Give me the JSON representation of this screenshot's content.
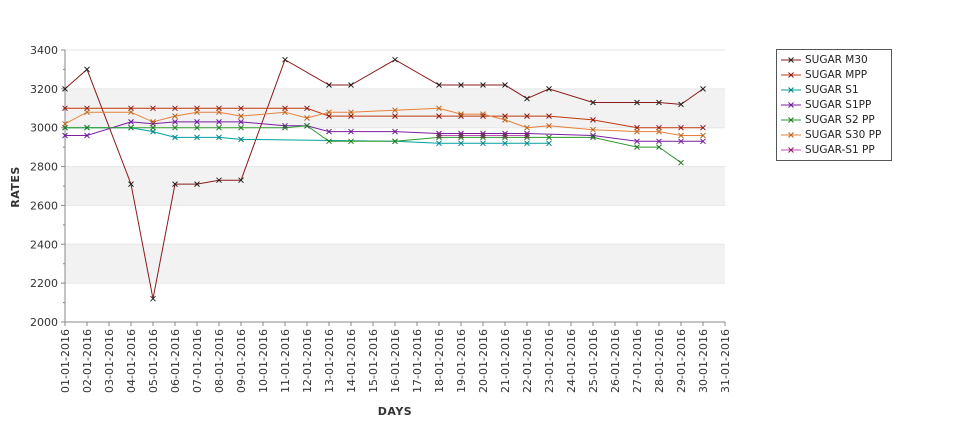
{
  "chart_data": {
    "type": "line",
    "title": "",
    "xlabel": "DAYS",
    "ylabel": "RATES",
    "ylim": [
      2000,
      3400
    ],
    "yticks": [
      2000,
      2200,
      2400,
      2600,
      2800,
      3000,
      3200,
      3400
    ],
    "grid": "alternating horizontal bands",
    "legend": "right",
    "x": [
      "01-01-2016",
      "02-01-2016",
      "03-01-2016",
      "04-01-2016",
      "05-01-2016",
      "06-01-2016",
      "07-01-2016",
      "08-01-2016",
      "09-01-2016",
      "10-01-2016",
      "11-01-2016",
      "12-01-2016",
      "13-01-2016",
      "14-01-2016",
      "15-01-2016",
      "16-01-2016",
      "17-01-2016",
      "18-01-2016",
      "19-01-2016",
      "20-01-2016",
      "21-01-2016",
      "22-01-2016",
      "23-01-2016",
      "24-01-2016",
      "25-01-2016",
      "26-01-2016",
      "27-01-2016",
      "28-01-2016",
      "29-01-2016",
      "30-01-2016",
      "31-01-2016"
    ],
    "series": [
      {
        "name": "SUGAR M30",
        "color": "#8b1a1a",
        "marker_color": "#222222",
        "values": [
          3200,
          3300,
          null,
          2710,
          2120,
          2710,
          2710,
          2730,
          2730,
          null,
          3350,
          null,
          3220,
          3220,
          null,
          3350,
          null,
          3220,
          3220,
          3220,
          3220,
          3150,
          3200,
          null,
          3130,
          null,
          3130,
          3130,
          3120,
          3200,
          null
        ]
      },
      {
        "name": "SUGAR MPP",
        "color": "#c0390b",
        "marker_color": "#8b1a1a",
        "values": [
          3100,
          3100,
          null,
          3100,
          3100,
          3100,
          3100,
          3100,
          3100,
          null,
          3100,
          3100,
          3060,
          3060,
          null,
          3060,
          null,
          3060,
          3060,
          3060,
          3060,
          3060,
          3060,
          null,
          3040,
          null,
          3000,
          3000,
          3000,
          3000,
          null
        ]
      },
      {
        "name": "SUGAR S1",
        "color": "#00a0a0",
        "marker_color": "#008080",
        "values": [
          3000,
          3000,
          null,
          3000,
          2980,
          2950,
          2950,
          2950,
          2940,
          null,
          null,
          null,
          null,
          null,
          null,
          2930,
          null,
          2920,
          2920,
          2920,
          2920,
          2920,
          2920,
          null,
          null,
          null,
          null,
          null,
          null,
          null,
          null
        ]
      },
      {
        "name": "SUGAR S1PP",
        "color": "#7a1fa2",
        "marker_color": "#6a1b9a",
        "values": [
          2960,
          2960,
          null,
          3030,
          3020,
          3030,
          3030,
          3030,
          3030,
          null,
          3010,
          3010,
          2980,
          2980,
          null,
          2980,
          null,
          2970,
          2970,
          2970,
          2970,
          2970,
          null,
          null,
          2960,
          null,
          2930,
          2930,
          2930,
          2930,
          null
        ]
      },
      {
        "name": "SUGAR S2 PP",
        "color": "#2e9b2e",
        "marker_color": "#1f7a1f",
        "values": [
          3000,
          3000,
          null,
          3000,
          3000,
          3000,
          3000,
          3000,
          3000,
          null,
          3000,
          3010,
          2930,
          2930,
          null,
          2930,
          null,
          2950,
          2950,
          2950,
          2950,
          2950,
          2950,
          null,
          2950,
          null,
          2900,
          2900,
          2820,
          null,
          null
        ]
      },
      {
        "name": "SUGAR S30 PP",
        "color": "#e8803a",
        "marker_color": "#b5651d",
        "values": [
          3020,
          3080,
          null,
          3080,
          3030,
          3060,
          3080,
          3080,
          3060,
          null,
          3080,
          3050,
          3080,
          3080,
          null,
          3090,
          null,
          3100,
          3070,
          3070,
          3040,
          3000,
          3010,
          null,
          2990,
          null,
          2980,
          2980,
          2960,
          2960,
          null
        ]
      },
      {
        "name": "SUGAR-S1 PP",
        "color": "#c44bb5",
        "marker_color": "#8b1a5a",
        "values": [
          null,
          null,
          null,
          null,
          null,
          null,
          null,
          null,
          null,
          null,
          null,
          null,
          null,
          null,
          null,
          null,
          null,
          2960,
          2960,
          2960,
          2960,
          2960,
          null,
          null,
          null,
          null,
          null,
          null,
          null,
          null,
          null
        ]
      }
    ]
  }
}
